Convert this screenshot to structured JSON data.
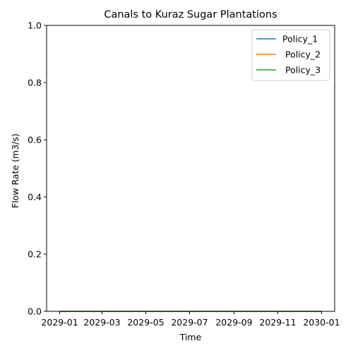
{
  "chart_data": {
    "type": "line",
    "title": "Canals to Kuraz Sugar Plantations",
    "xlabel": "Time",
    "ylabel": "Flow Rate (m3/s)",
    "x_ticks": [
      "2029-01",
      "2029-03",
      "2029-05",
      "2029-07",
      "2029-09",
      "2029-11",
      "2030-01"
    ],
    "x_range": [
      "2029-01-01",
      "2030-01-01"
    ],
    "ylim": [
      0,
      1
    ],
    "y_ticks": [
      "0.0",
      "0.2",
      "0.4",
      "0.6",
      "0.8",
      "1.0"
    ],
    "grid": false,
    "legend_position": "top-right",
    "series": [
      {
        "name": "Policy_1",
        "color": "#1f77b4",
        "x": [
          "2029-01-01",
          "2030-01-01"
        ],
        "y": [
          0,
          0
        ]
      },
      {
        "name": " Policy_2",
        "color": "#ff7f0e",
        "x": [
          "2029-01-01",
          "2030-01-01"
        ],
        "y": [
          0,
          0
        ]
      },
      {
        "name": " Policy_3",
        "color": "#2ca02c",
        "x": [
          "2029-01-01",
          "2030-01-01"
        ],
        "y": [
          0,
          0
        ]
      }
    ]
  }
}
